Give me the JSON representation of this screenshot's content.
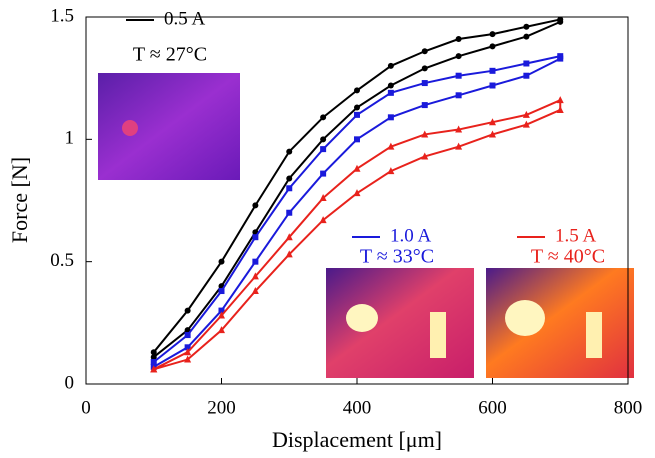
{
  "chart_data": {
    "type": "line",
    "xlabel": "Displacement [μm]",
    "ylabel": "Force [N]",
    "xlim": [
      0,
      800
    ],
    "xticks": [
      0,
      200,
      400,
      600,
      800
    ],
    "ylim": [
      0,
      1.5
    ],
    "yticks": [
      0,
      0.5,
      1,
      1.5
    ],
    "series": [
      {
        "name": "0.5 A",
        "temperature": "T ≈ 27°C",
        "color": "#000000",
        "marker": "circle",
        "x": [
          100,
          150,
          200,
          250,
          300,
          350,
          400,
          450,
          500,
          550,
          600,
          650,
          700,
          700,
          650,
          600,
          550,
          500,
          450,
          400,
          350,
          300,
          250,
          200,
          150,
          100
        ],
        "values": [
          0.11,
          0.22,
          0.4,
          0.62,
          0.84,
          1.0,
          1.13,
          1.22,
          1.29,
          1.34,
          1.38,
          1.42,
          1.48,
          1.49,
          1.46,
          1.43,
          1.41,
          1.36,
          1.3,
          1.2,
          1.09,
          0.95,
          0.73,
          0.5,
          0.3,
          0.13
        ]
      },
      {
        "name": "1.0 A",
        "temperature": "T ≈ 33°C",
        "color": "#1a1adb",
        "marker": "square",
        "x": [
          100,
          150,
          200,
          250,
          300,
          350,
          400,
          450,
          500,
          550,
          600,
          650,
          700,
          700,
          650,
          600,
          550,
          500,
          450,
          400,
          350,
          300,
          250,
          200,
          150,
          100
        ],
        "values": [
          0.07,
          0.15,
          0.3,
          0.5,
          0.7,
          0.86,
          1.0,
          1.09,
          1.14,
          1.18,
          1.22,
          1.26,
          1.33,
          1.34,
          1.31,
          1.28,
          1.26,
          1.23,
          1.19,
          1.1,
          0.96,
          0.8,
          0.6,
          0.38,
          0.2,
          0.09
        ]
      },
      {
        "name": "1.5 A",
        "temperature": "T ≈ 40°C",
        "color": "#e8221c",
        "marker": "triangle",
        "x": [
          100,
          150,
          200,
          250,
          300,
          350,
          400,
          450,
          500,
          550,
          600,
          650,
          700,
          700,
          650,
          600,
          550,
          500,
          450,
          400,
          350,
          300,
          250,
          200,
          150,
          100
        ],
        "values": [
          0.06,
          0.1,
          0.22,
          0.38,
          0.53,
          0.67,
          0.78,
          0.87,
          0.93,
          0.97,
          1.02,
          1.06,
          1.12,
          1.16,
          1.1,
          1.07,
          1.04,
          1.02,
          0.97,
          0.88,
          0.76,
          0.6,
          0.44,
          0.28,
          0.13,
          0.06
        ]
      }
    ]
  }
}
